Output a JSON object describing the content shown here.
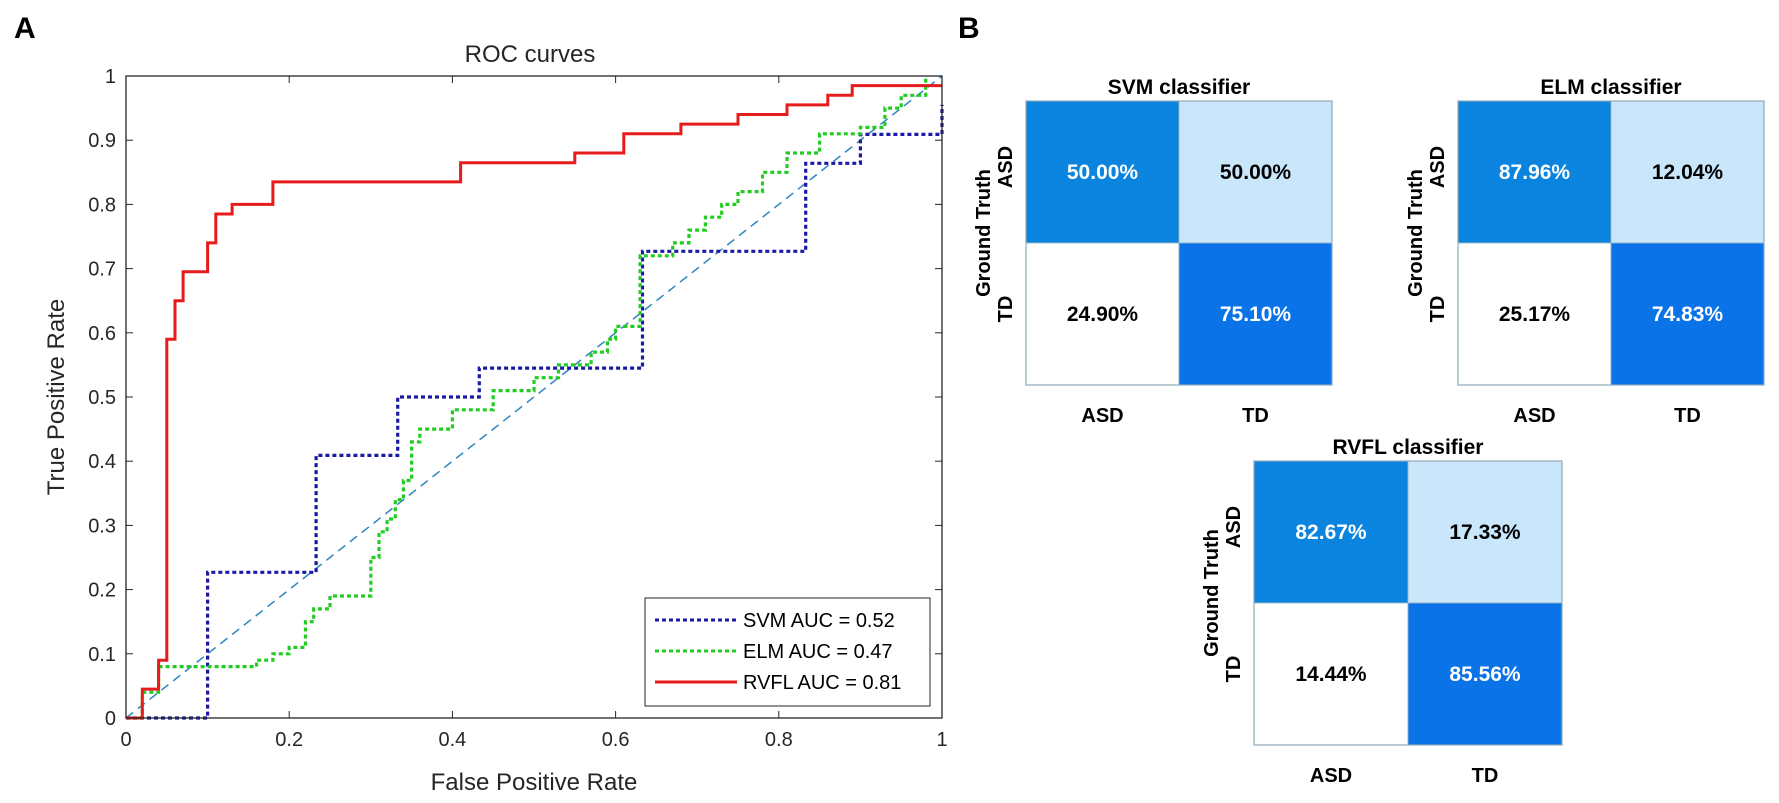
{
  "panel_a": {
    "letter": "A"
  },
  "panel_b": {
    "letter": "B"
  },
  "chart_data": [
    {
      "type": "line",
      "title": "ROC curves",
      "xlabel": "False Positive Rate",
      "ylabel": "True Positive Rate",
      "xlim": [
        0,
        1
      ],
      "ylim": [
        0,
        1
      ],
      "xticks": [
        0,
        0.2,
        0.4,
        0.6,
        0.8,
        1
      ],
      "xtick_labels": [
        "0",
        "0.2",
        "0.4",
        "0.6",
        "0.8",
        "1"
      ],
      "yticks": [
        0,
        0.1,
        0.2,
        0.3,
        0.4,
        0.5,
        0.6,
        0.7,
        0.8,
        0.9,
        1
      ],
      "ytick_labels": [
        "0",
        "0.1",
        "0.2",
        "0.3",
        "0.4",
        "0.5",
        "0.6",
        "0.7",
        "0.8",
        "0.9",
        "1"
      ],
      "legend_position": "bottom-right",
      "diagonal": {
        "x": [
          0,
          1
        ],
        "y": [
          0,
          1
        ],
        "color": "#2e86c1"
      },
      "series": [
        {
          "name": "SVM AUC = 0.52",
          "color": "#1a1aa6",
          "style": "dotted",
          "x": [
            0,
            0.1,
            0.1,
            0.233,
            0.233,
            0.333,
            0.333,
            0.433,
            0.433,
            0.633,
            0.633,
            0.833,
            0.833,
            0.9,
            0.9,
            1,
            1
          ],
          "y": [
            0,
            0,
            0.227,
            0.227,
            0.409,
            0.409,
            0.5,
            0.5,
            0.545,
            0.545,
            0.727,
            0.727,
            0.864,
            0.864,
            0.909,
            0.909,
            0.955
          ]
        },
        {
          "name": "ELM AUC = 0.47",
          "color": "#22cc22",
          "style": "dotted",
          "x": [
            0,
            0.02,
            0.02,
            0.04,
            0.04,
            0.16,
            0.16,
            0.18,
            0.18,
            0.2,
            0.2,
            0.22,
            0.22,
            0.23,
            0.23,
            0.25,
            0.25,
            0.3,
            0.3,
            0.31,
            0.31,
            0.32,
            0.32,
            0.33,
            0.33,
            0.34,
            0.34,
            0.35,
            0.35,
            0.36,
            0.36,
            0.4,
            0.4,
            0.45,
            0.45,
            0.5,
            0.5,
            0.53,
            0.53,
            0.57,
            0.57,
            0.59,
            0.59,
            0.6,
            0.6,
            0.63,
            0.63,
            0.67,
            0.67,
            0.69,
            0.69,
            0.71,
            0.71,
            0.73,
            0.73,
            0.75,
            0.75,
            0.78,
            0.78,
            0.81,
            0.81,
            0.85,
            0.85,
            0.9,
            0.9,
            0.93,
            0.93,
            0.95,
            0.95,
            0.98,
            0.98
          ],
          "y": [
            0,
            0,
            0.04,
            0.04,
            0.08,
            0.08,
            0.09,
            0.09,
            0.1,
            0.1,
            0.11,
            0.11,
            0.15,
            0.15,
            0.17,
            0.17,
            0.19,
            0.19,
            0.25,
            0.25,
            0.29,
            0.29,
            0.31,
            0.31,
            0.34,
            0.34,
            0.37,
            0.37,
            0.43,
            0.43,
            0.45,
            0.45,
            0.48,
            0.48,
            0.51,
            0.51,
            0.53,
            0.53,
            0.55,
            0.55,
            0.57,
            0.57,
            0.59,
            0.59,
            0.61,
            0.61,
            0.72,
            0.72,
            0.74,
            0.74,
            0.76,
            0.76,
            0.78,
            0.78,
            0.8,
            0.8,
            0.82,
            0.82,
            0.85,
            0.85,
            0.88,
            0.88,
            0.91,
            0.91,
            0.92,
            0.92,
            0.95,
            0.95,
            0.97,
            0.97,
            1.0
          ]
        },
        {
          "name": "RVFL AUC = 0.81",
          "color": "#e61c1c",
          "style": "solid",
          "x": [
            0,
            0.02,
            0.02,
            0.04,
            0.04,
            0.05,
            0.05,
            0.06,
            0.06,
            0.07,
            0.07,
            0.1,
            0.1,
            0.11,
            0.11,
            0.13,
            0.13,
            0.18,
            0.18,
            0.41,
            0.41,
            0.55,
            0.55,
            0.61,
            0.61,
            0.68,
            0.68,
            0.75,
            0.75,
            0.81,
            0.81,
            0.86,
            0.86,
            0.89,
            0.89,
            0.95,
            0.95,
            1
          ],
          "y": [
            0,
            0,
            0.045,
            0.045,
            0.09,
            0.09,
            0.59,
            0.59,
            0.65,
            0.65,
            0.695,
            0.695,
            0.74,
            0.74,
            0.785,
            0.785,
            0.8,
            0.8,
            0.835,
            0.835,
            0.865,
            0.865,
            0.88,
            0.88,
            0.91,
            0.91,
            0.925,
            0.925,
            0.94,
            0.94,
            0.955,
            0.955,
            0.97,
            0.97,
            0.985,
            0.985,
            0.985,
            0.985
          ]
        }
      ]
    },
    {
      "type": "heatmap",
      "title": "SVM classifier",
      "ylabel": "Ground Truth",
      "row_labels": [
        "ASD",
        "TD"
      ],
      "col_labels": [
        "ASD",
        "TD"
      ],
      "cell_text": [
        [
          "50.00%",
          "50.00%"
        ],
        [
          "24.90%",
          "75.10%"
        ]
      ],
      "cell_colors": [
        [
          "#0a84de",
          "#c9e6fb"
        ],
        [
          "#ffffff",
          "#0a73e8"
        ]
      ],
      "text_colors": [
        [
          "#ffffff",
          "#000000"
        ],
        [
          "#000000",
          "#ffffff"
        ]
      ]
    },
    {
      "type": "heatmap",
      "title": "ELM classifier",
      "ylabel": "Ground Truth",
      "row_labels": [
        "ASD",
        "TD"
      ],
      "col_labels": [
        "ASD",
        "TD"
      ],
      "cell_text": [
        [
          "87.96%",
          "12.04%"
        ],
        [
          "25.17%",
          "74.83%"
        ]
      ],
      "cell_colors": [
        [
          "#0a84de",
          "#c9e6fb"
        ],
        [
          "#ffffff",
          "#0a73e8"
        ]
      ],
      "text_colors": [
        [
          "#ffffff",
          "#000000"
        ],
        [
          "#000000",
          "#ffffff"
        ]
      ]
    },
    {
      "type": "heatmap",
      "title": "RVFL classifier",
      "ylabel": "Ground Truth",
      "row_labels": [
        "ASD",
        "TD"
      ],
      "col_labels": [
        "ASD",
        "TD"
      ],
      "cell_text": [
        [
          "82.67%",
          "17.33%"
        ],
        [
          "14.44%",
          "85.56%"
        ]
      ],
      "cell_colors": [
        [
          "#0a84de",
          "#c9e6fb"
        ],
        [
          "#ffffff",
          "#0a73e8"
        ]
      ],
      "text_colors": [
        [
          "#ffffff",
          "#000000"
        ],
        [
          "#000000",
          "#ffffff"
        ]
      ]
    }
  ]
}
